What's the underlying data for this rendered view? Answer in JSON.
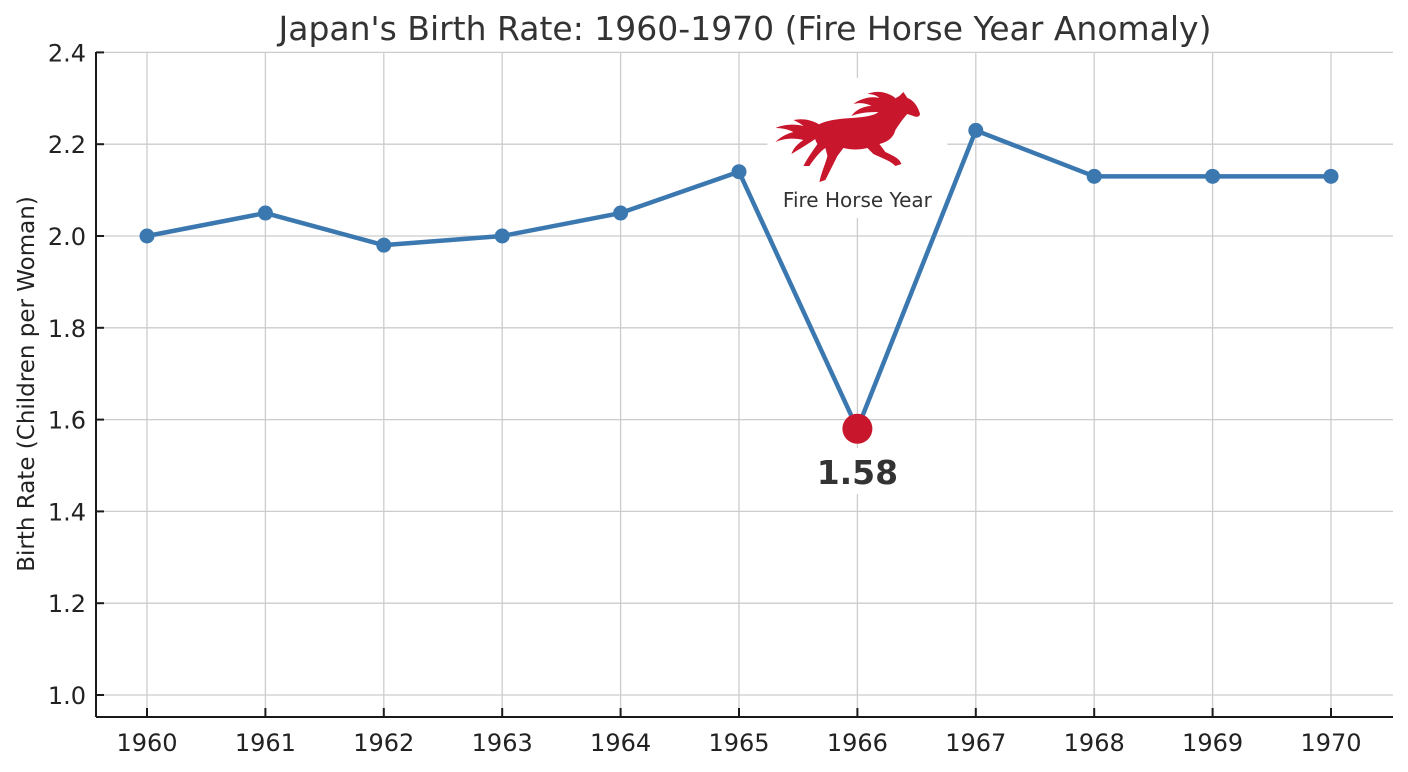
{
  "chart_data": {
    "type": "line",
    "title": "Japan's Birth Rate: 1960-1970 (Fire Horse Year Anomaly)",
    "xlabel": "",
    "ylabel": "Birth Rate (Children per Woman)",
    "categories": [
      "1960",
      "1961",
      "1962",
      "1963",
      "1964",
      "1965",
      "1966",
      "1967",
      "1968",
      "1969",
      "1970"
    ],
    "series": [
      {
        "name": "Birth Rate",
        "values": [
          2.0,
          2.05,
          1.98,
          2.0,
          2.05,
          2.14,
          1.58,
          2.23,
          2.13,
          2.13,
          2.13
        ]
      }
    ],
    "ylim": [
      0.95,
      2.4
    ],
    "yticks": [
      "1.0",
      "1.2",
      "1.4",
      "1.6",
      "1.8",
      "2.0",
      "2.2",
      "2.4"
    ],
    "grid": true,
    "legend": null,
    "annotations": [
      {
        "x": "1966",
        "text": "Fire Horse Year",
        "icon": "fire-horse-icon"
      },
      {
        "x": "1966",
        "text": "1.58",
        "highlight": true
      }
    ]
  },
  "colors": {
    "line": "#3b78b0",
    "highlight": "#c8172d",
    "grid": "#cccccc",
    "text": "#333333"
  }
}
